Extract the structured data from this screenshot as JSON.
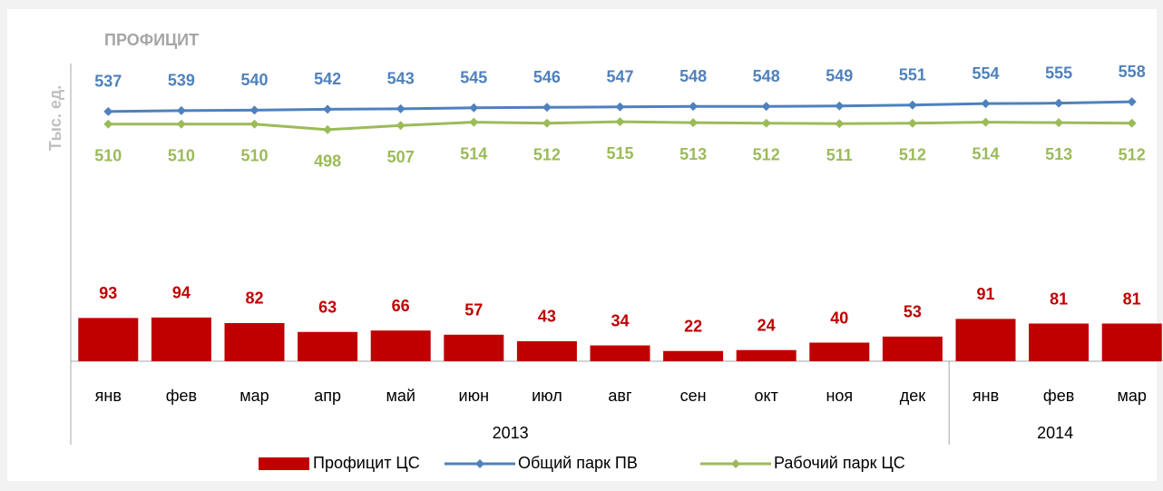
{
  "chart_data": {
    "type": "bar",
    "title": "ПРОФИЦИТ",
    "y_label": "Тыс. ед.",
    "categories": [
      "янв",
      "фев",
      "мар",
      "апр",
      "май",
      "июн",
      "июл",
      "авг",
      "сен",
      "окт",
      "ноя",
      "дек",
      "янв",
      "фев",
      "мар"
    ],
    "x_groups": [
      {
        "label": "2013",
        "span": 12
      },
      {
        "label": "2014",
        "span": 3
      }
    ],
    "ylim": [
      0,
      650
    ],
    "series": [
      {
        "name": "Профицит ЦС",
        "type": "bar",
        "color": "#c00000",
        "values": [
          93,
          94,
          82,
          63,
          66,
          57,
          43,
          34,
          22,
          24,
          40,
          53,
          91,
          81,
          81
        ]
      },
      {
        "name": "Общий парк ПВ",
        "type": "line",
        "color": "#4f81bd",
        "values": [
          537,
          539,
          540,
          542,
          543,
          545,
          546,
          547,
          548,
          548,
          549,
          551,
          554,
          555,
          558
        ]
      },
      {
        "name": "Рабочий парк ЦС",
        "type": "line",
        "color": "#9bbb59",
        "values": [
          510,
          510,
          510,
          498,
          507,
          514,
          512,
          515,
          513,
          512,
          511,
          512,
          514,
          513,
          512
        ]
      }
    ]
  }
}
